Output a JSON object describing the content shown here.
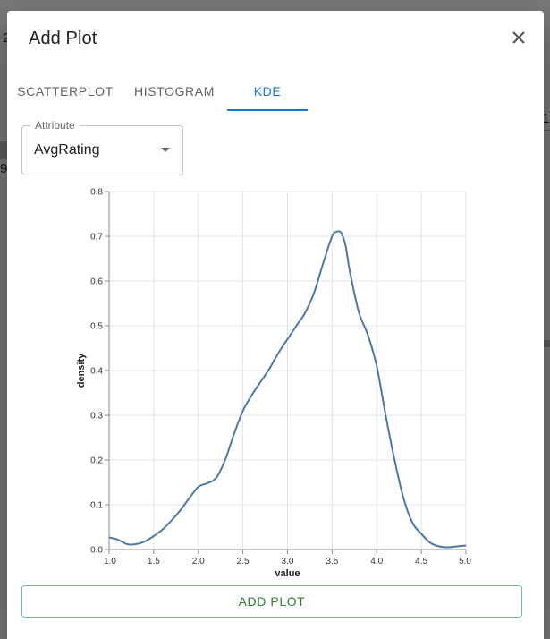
{
  "background": {
    "fragments": [
      "2",
      "9.",
      "1"
    ]
  },
  "dialog": {
    "title": "Add Plot",
    "close_icon": "close-icon"
  },
  "tabs": [
    {
      "label": "SCATTERPLOT",
      "active": false
    },
    {
      "label": "HISTOGRAM",
      "active": false
    },
    {
      "label": "KDE",
      "active": true
    }
  ],
  "attribute_select": {
    "label": "Attribute",
    "value": "AvgRating",
    "icon": "chevron-down-icon"
  },
  "chart_data": {
    "type": "area",
    "title": "",
    "xlabel": "value",
    "ylabel": "density",
    "xlim": [
      1.0,
      5.0
    ],
    "ylim": [
      0.0,
      0.8
    ],
    "x_ticks": [
      "1.0",
      "1.5",
      "2.0",
      "2.5",
      "3.0",
      "3.5",
      "4.0",
      "4.5",
      "5.0"
    ],
    "y_ticks": [
      "0.0",
      "0.1",
      "0.2",
      "0.3",
      "0.4",
      "0.5",
      "0.6",
      "0.7",
      "0.8"
    ],
    "grid": true,
    "line_color": "#4c78a8",
    "series": [
      {
        "x": [
          1.0,
          1.1,
          1.2,
          1.3,
          1.4,
          1.5,
          1.6,
          1.7,
          1.8,
          1.9,
          2.0,
          2.1,
          2.2,
          2.3,
          2.4,
          2.5,
          2.6,
          2.7,
          2.8,
          2.9,
          3.0,
          3.1,
          3.2,
          3.3,
          3.4,
          3.5,
          3.55,
          3.6,
          3.65,
          3.7,
          3.8,
          3.9,
          4.0,
          4.1,
          4.2,
          4.3,
          4.4,
          4.5,
          4.6,
          4.7,
          4.8,
          4.9,
          5.0
        ],
        "y": [
          0.027,
          0.022,
          0.012,
          0.012,
          0.018,
          0.03,
          0.045,
          0.065,
          0.088,
          0.115,
          0.14,
          0.148,
          0.16,
          0.2,
          0.258,
          0.31,
          0.345,
          0.375,
          0.405,
          0.44,
          0.47,
          0.5,
          0.53,
          0.575,
          0.64,
          0.7,
          0.71,
          0.708,
          0.68,
          0.62,
          0.53,
          0.48,
          0.41,
          0.3,
          0.2,
          0.115,
          0.06,
          0.035,
          0.015,
          0.007,
          0.005,
          0.007,
          0.009
        ]
      }
    ]
  },
  "footer": {
    "add_label": "ADD PLOT"
  }
}
